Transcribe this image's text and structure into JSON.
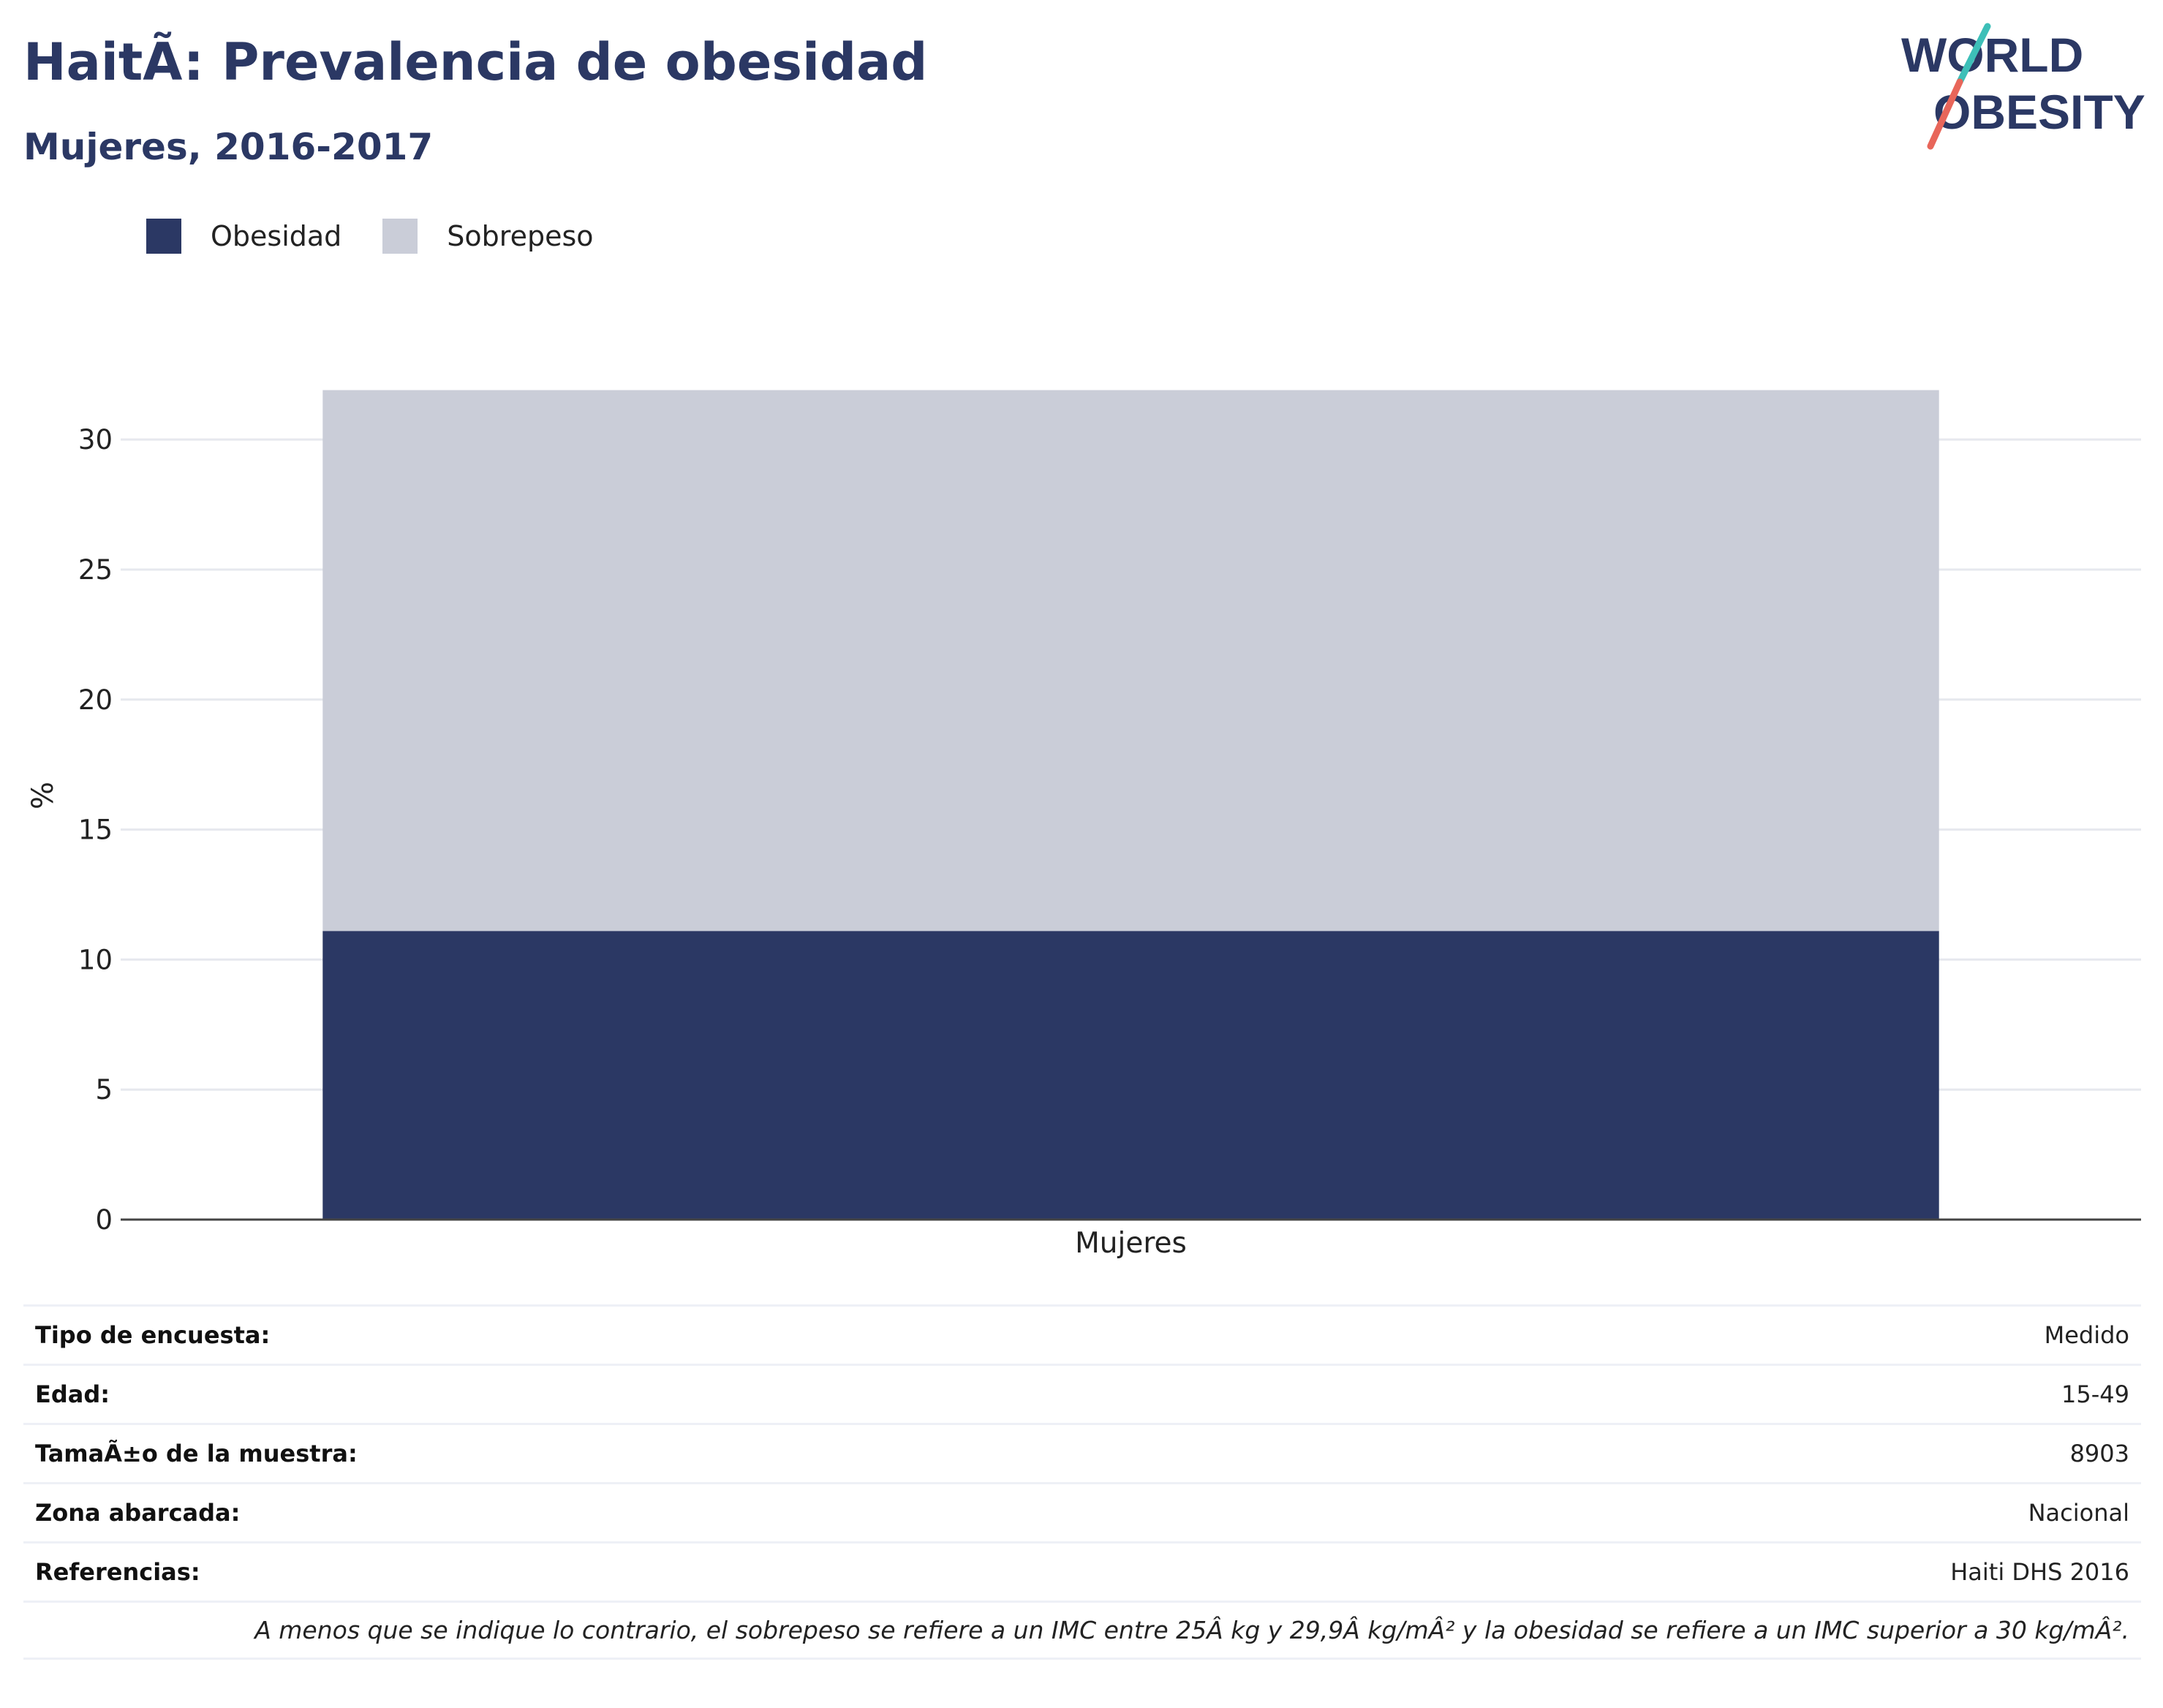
{
  "header": {
    "title": "HaitÃ: Prevalencia de obesidad",
    "subtitle": "Mujeres, 2016-2017",
    "logo_line1": "WORLD",
    "logo_line2": "OBESITY"
  },
  "colors": {
    "obesity": "#2b3864",
    "overweight": "#cacdd8",
    "title": "#2b3864",
    "logo_slash_top": "#3dbfb8",
    "logo_slash_bottom": "#e8665a"
  },
  "legend": [
    {
      "label": "Obesidad",
      "color": "#2b3864"
    },
    {
      "label": "Sobrepeso",
      "color": "#cacdd8"
    }
  ],
  "chart_data": {
    "type": "bar",
    "stacked": true,
    "categories": [
      "Mujeres"
    ],
    "series": [
      {
        "name": "Obesidad",
        "values": [
          11.1
        ]
      },
      {
        "name": "Sobrepeso",
        "values": [
          20.8
        ]
      }
    ],
    "title": "HaitÃ: Prevalencia de obesidad",
    "subtitle": "Mujeres, 2016-2017",
    "xlabel": "",
    "ylabel": "%",
    "ylim": [
      0,
      32
    ],
    "yticks": [
      0,
      5,
      10,
      15,
      20,
      25,
      30
    ],
    "grid": true,
    "legend_position": "top-left"
  },
  "info": [
    {
      "label": "Tipo de encuesta:",
      "value": "Medido"
    },
    {
      "label": "Edad:",
      "value": "15-49"
    },
    {
      "label": "TamaÃ±o de la muestra:",
      "value": "8903"
    },
    {
      "label": "Zona abarcada:",
      "value": "Nacional"
    },
    {
      "label": "Referencias:",
      "value": "Haiti DHS 2016"
    }
  ],
  "footnote": "A menos que se indique lo contrario, el sobrepeso se refiere a un IMC entre 25Â kg y 29,9Â kg/mÂ² y la obesidad se refiere a un IMC superior a 30 kg/mÂ²."
}
